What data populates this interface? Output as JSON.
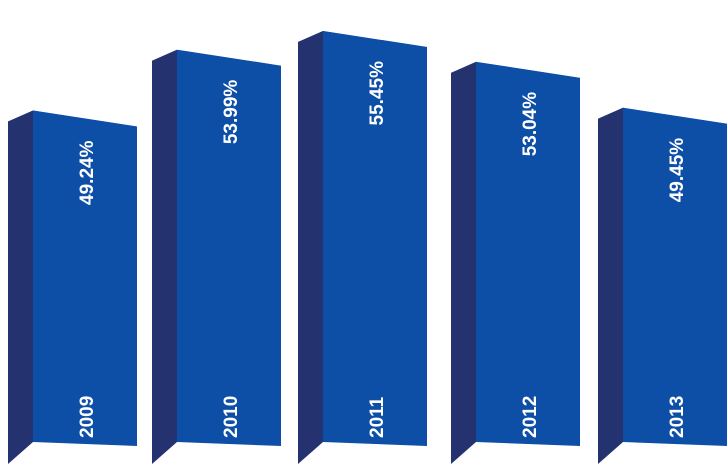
{
  "chart_data": {
    "type": "bar",
    "style": "3d-columns",
    "categories": [
      "2009",
      "2010",
      "2011",
      "2012",
      "2013"
    ],
    "values": [
      49.24,
      53.99,
      55.45,
      53.04,
      49.45
    ],
    "value_labels": [
      "49.24%",
      "53.99%",
      "55.45%",
      "53.04%",
      "49.45%"
    ],
    "unit": "%",
    "title": "",
    "xlabel": "",
    "ylabel": "",
    "grid": false,
    "legend": "none",
    "colors": {
      "front": "#0d4ea6",
      "side": "#253270",
      "top": "#2a63c0"
    }
  }
}
